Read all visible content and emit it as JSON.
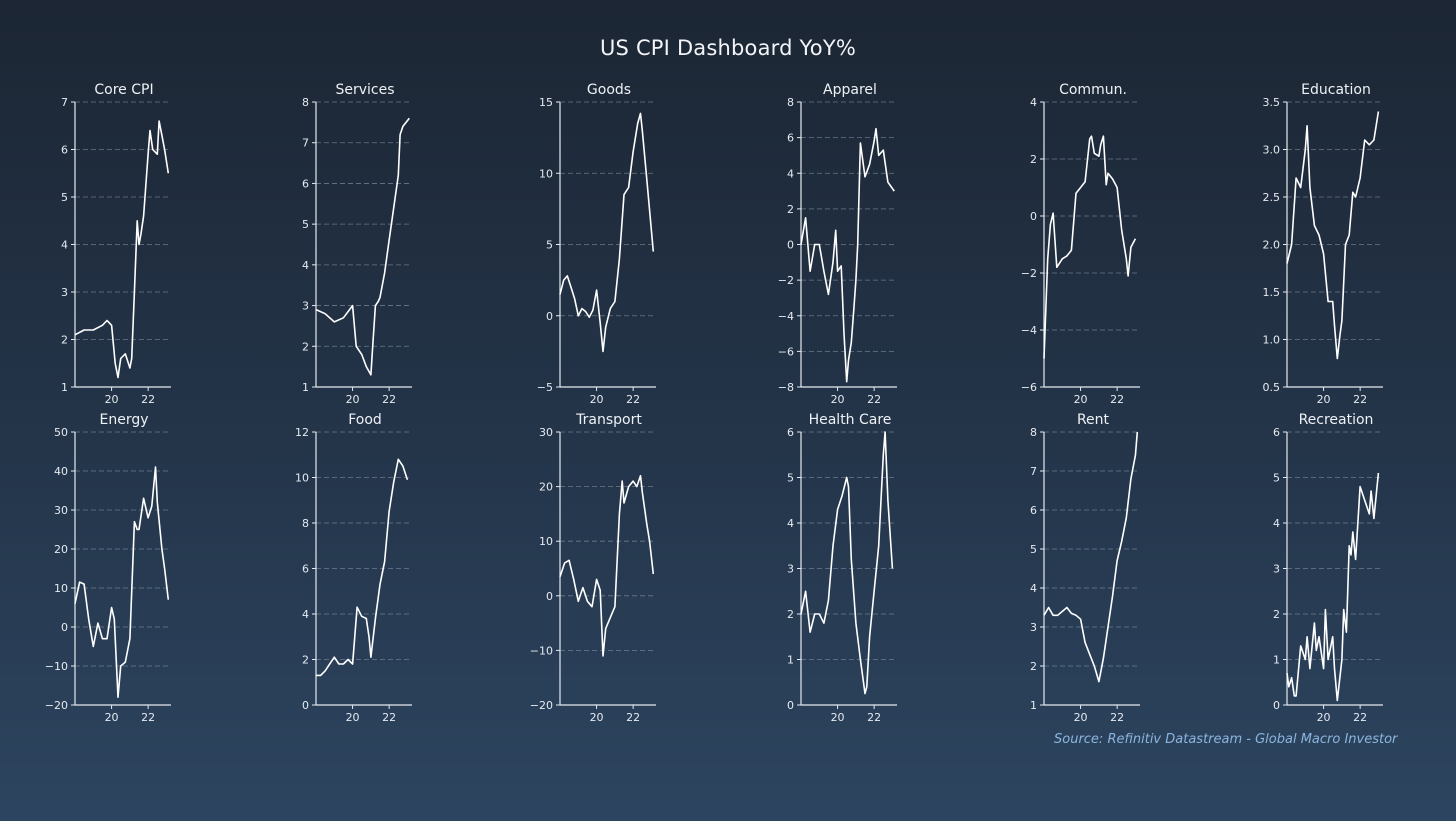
{
  "title": "US CPI Dashboard YoY%",
  "source": "Source: Refinitiv Datastream - Global Macro Investor",
  "colors": {
    "line": "#ffffff",
    "grid": "#8a97a8",
    "axis": "#e6eaf0"
  },
  "chart_data": [
    {
      "type": "line",
      "title": "Core CPI",
      "ylim": [
        1,
        7
      ],
      "yticks": [
        1,
        2,
        3,
        4,
        5,
        6,
        7
      ],
      "xticks": [
        "20",
        "22"
      ],
      "x": [
        2018.0,
        2018.5,
        2019.0,
        2019.5,
        2019.75,
        2020.0,
        2020.2,
        2020.35,
        2020.5,
        2020.75,
        2021.0,
        2021.1,
        2021.25,
        2021.4,
        2021.5,
        2021.6,
        2021.75,
        2022.0,
        2022.1,
        2022.25,
        2022.5,
        2022.6,
        2022.75,
        2022.9,
        2023.1
      ],
      "values": [
        2.1,
        2.2,
        2.2,
        2.3,
        2.4,
        2.3,
        1.5,
        1.2,
        1.6,
        1.7,
        1.4,
        1.6,
        3.0,
        4.5,
        4.0,
        4.2,
        4.6,
        5.9,
        6.4,
        6.0,
        5.9,
        6.6,
        6.3,
        6.0,
        5.5
      ]
    },
    {
      "type": "line",
      "title": "Services",
      "ylim": [
        1,
        8
      ],
      "yticks": [
        1,
        2,
        3,
        4,
        5,
        6,
        7,
        8
      ],
      "xticks": [
        "20",
        "22"
      ],
      "x": [
        2018.0,
        2018.5,
        2019.0,
        2019.5,
        2020.0,
        2020.2,
        2020.5,
        2020.75,
        2021.0,
        2021.1,
        2021.25,
        2021.4,
        2021.5,
        2021.75,
        2022.0,
        2022.25,
        2022.5,
        2022.6,
        2022.75,
        2023.1
      ],
      "values": [
        2.9,
        2.8,
        2.6,
        2.7,
        3.0,
        2.0,
        1.8,
        1.5,
        1.3,
        2.0,
        3.0,
        3.1,
        3.2,
        3.8,
        4.6,
        5.4,
        6.2,
        7.2,
        7.4,
        7.6
      ]
    },
    {
      "type": "line",
      "title": "Goods",
      "ylim": [
        -5,
        15
      ],
      "yticks": [
        -5,
        0,
        5,
        10,
        15
      ],
      "xticks": [
        "20",
        "22"
      ],
      "x": [
        2018.0,
        2018.2,
        2018.4,
        2018.6,
        2018.8,
        2019.0,
        2019.2,
        2019.4,
        2019.6,
        2019.8,
        2020.0,
        2020.2,
        2020.35,
        2020.5,
        2020.75,
        2021.0,
        2021.25,
        2021.5,
        2021.75,
        2022.0,
        2022.25,
        2022.4,
        2022.5,
        2022.75,
        2023.1
      ],
      "values": [
        1.5,
        2.5,
        2.8,
        2.0,
        1.2,
        0.0,
        0.5,
        0.3,
        -0.1,
        0.4,
        1.8,
        -0.5,
        -2.5,
        -0.8,
        0.5,
        1.0,
        4.0,
        8.5,
        9.0,
        11.5,
        13.5,
        14.2,
        13.0,
        9.5,
        4.5
      ]
    },
    {
      "type": "line",
      "title": "Apparel",
      "ylim": [
        -8,
        8
      ],
      "yticks": [
        -8,
        -6,
        -4,
        -2,
        0,
        2,
        4,
        6,
        8
      ],
      "xticks": [
        "20",
        "22"
      ],
      "x": [
        2018.0,
        2018.25,
        2018.5,
        2018.75,
        2019.0,
        2019.25,
        2019.5,
        2019.75,
        2019.9,
        2020.0,
        2020.2,
        2020.35,
        2020.5,
        2020.6,
        2020.75,
        2020.9,
        2021.0,
        2021.1,
        2021.25,
        2021.5,
        2021.75,
        2022.0,
        2022.1,
        2022.25,
        2022.5,
        2022.75,
        2023.1
      ],
      "values": [
        0.0,
        1.5,
        -1.5,
        0.0,
        0.0,
        -1.5,
        -2.8,
        -1.0,
        0.8,
        -1.5,
        -1.2,
        -5.0,
        -7.7,
        -6.5,
        -5.5,
        -3.5,
        -2.0,
        0.0,
        5.7,
        3.8,
        4.5,
        5.8,
        6.5,
        5.0,
        5.3,
        3.5,
        3.0
      ]
    },
    {
      "type": "line",
      "title": "Commun.",
      "ylim": [
        -6,
        4
      ],
      "yticks": [
        -6,
        -4,
        -2,
        0,
        2,
        4
      ],
      "xticks": [
        "20",
        "22"
      ],
      "x": [
        2018.0,
        2018.2,
        2018.35,
        2018.5,
        2018.7,
        2019.0,
        2019.25,
        2019.5,
        2019.75,
        2020.0,
        2020.25,
        2020.5,
        2020.6,
        2020.75,
        2021.0,
        2021.1,
        2021.25,
        2021.4,
        2021.5,
        2021.75,
        2022.0,
        2022.25,
        2022.5,
        2022.6,
        2022.75,
        2023.0
      ],
      "values": [
        -5.0,
        -1.5,
        -0.3,
        0.1,
        -1.8,
        -1.5,
        -1.4,
        -1.2,
        0.8,
        1.0,
        1.2,
        2.7,
        2.8,
        2.2,
        2.1,
        2.5,
        2.8,
        1.1,
        1.5,
        1.3,
        1.0,
        -0.5,
        -1.5,
        -2.1,
        -1.1,
        -0.8
      ]
    },
    {
      "type": "line",
      "title": "Education",
      "ylim": [
        0.5,
        3.5
      ],
      "yticks": [
        0.5,
        1.0,
        1.5,
        2.0,
        2.5,
        3.0,
        3.5
      ],
      "xticks": [
        "20",
        "22"
      ],
      "x": [
        2018.0,
        2018.25,
        2018.5,
        2018.75,
        2019.0,
        2019.1,
        2019.25,
        2019.5,
        2019.75,
        2020.0,
        2020.25,
        2020.5,
        2020.6,
        2020.75,
        2020.9,
        2021.0,
        2021.2,
        2021.4,
        2021.6,
        2021.75,
        2022.0,
        2022.25,
        2022.5,
        2022.75,
        2023.0
      ],
      "values": [
        1.8,
        2.0,
        2.7,
        2.6,
        3.0,
        3.25,
        2.6,
        2.2,
        2.1,
        1.9,
        1.4,
        1.4,
        1.15,
        0.8,
        1.05,
        1.2,
        2.0,
        2.1,
        2.55,
        2.5,
        2.7,
        3.1,
        3.05,
        3.1,
        3.4
      ]
    },
    {
      "type": "line",
      "title": "Energy",
      "ylim": [
        -20,
        50
      ],
      "yticks": [
        -20,
        -10,
        0,
        10,
        20,
        30,
        40,
        50
      ],
      "xticks": [
        "20",
        "22"
      ],
      "x": [
        2018.0,
        2018.25,
        2018.5,
        2018.75,
        2019.0,
        2019.25,
        2019.5,
        2019.75,
        2020.0,
        2020.15,
        2020.35,
        2020.5,
        2020.75,
        2021.0,
        2021.25,
        2021.4,
        2021.5,
        2021.75,
        2022.0,
        2022.2,
        2022.4,
        2022.5,
        2022.75,
        2022.9,
        2023.1
      ],
      "values": [
        6.0,
        11.5,
        11.0,
        2.0,
        -5.0,
        1.0,
        -3.0,
        -3.0,
        5.0,
        2.0,
        -18.0,
        -10.0,
        -9.0,
        -3.0,
        27.0,
        25.0,
        25.0,
        33.0,
        28.0,
        31.0,
        41.0,
        32.0,
        20.0,
        15.0,
        7.0
      ]
    },
    {
      "type": "line",
      "title": "Food",
      "ylim": [
        0,
        12
      ],
      "yticks": [
        0,
        2,
        4,
        6,
        8,
        10,
        12
      ],
      "xticks": [
        "20",
        "22"
      ],
      "x": [
        2018.0,
        2018.25,
        2018.5,
        2018.75,
        2019.0,
        2019.25,
        2019.5,
        2019.75,
        2020.0,
        2020.25,
        2020.5,
        2020.75,
        2020.9,
        2021.0,
        2021.25,
        2021.5,
        2021.75,
        2022.0,
        2022.25,
        2022.5,
        2022.75,
        2023.0
      ],
      "values": [
        1.3,
        1.3,
        1.5,
        1.8,
        2.1,
        1.8,
        1.8,
        2.0,
        1.8,
        4.3,
        3.9,
        3.8,
        3.0,
        2.1,
        3.8,
        5.3,
        6.3,
        8.5,
        9.8,
        10.8,
        10.5,
        9.9
      ]
    },
    {
      "type": "line",
      "title": "Transport",
      "ylim": [
        -20,
        30
      ],
      "yticks": [
        -20,
        -10,
        0,
        10,
        20,
        30
      ],
      "xticks": [
        "20",
        "22"
      ],
      "x": [
        2018.0,
        2018.25,
        2018.5,
        2018.75,
        2019.0,
        2019.25,
        2019.5,
        2019.75,
        2020.0,
        2020.2,
        2020.35,
        2020.5,
        2020.75,
        2021.0,
        2021.25,
        2021.4,
        2021.5,
        2021.75,
        2022.0,
        2022.2,
        2022.4,
        2022.5,
        2022.75,
        2022.9,
        2023.1
      ],
      "values": [
        3.5,
        6.0,
        6.5,
        3.0,
        -1.0,
        1.5,
        -1.0,
        -2.0,
        3.0,
        1.0,
        -11.0,
        -6.0,
        -4.0,
        -2.0,
        15.0,
        21.0,
        17.0,
        20.0,
        21.0,
        20.0,
        22.0,
        19.0,
        13.0,
        10.0,
        4.0
      ]
    },
    {
      "type": "line",
      "title": "Health Care",
      "ylim": [
        0,
        6
      ],
      "yticks": [
        0,
        1,
        2,
        3,
        4,
        5,
        6
      ],
      "xticks": [
        "20",
        "22"
      ],
      "x": [
        2018.0,
        2018.25,
        2018.5,
        2018.75,
        2019.0,
        2019.25,
        2019.5,
        2019.75,
        2020.0,
        2020.25,
        2020.5,
        2020.6,
        2020.75,
        2021.0,
        2021.25,
        2021.5,
        2021.6,
        2021.75,
        2022.0,
        2022.25,
        2022.5,
        2022.6,
        2022.75,
        2023.0
      ],
      "values": [
        2.0,
        2.5,
        1.6,
        2.0,
        2.0,
        1.8,
        2.3,
        3.5,
        4.3,
        4.6,
        5.0,
        4.8,
        3.2,
        1.8,
        1.0,
        0.25,
        0.4,
        1.5,
        2.5,
        3.5,
        5.5,
        6.0,
        4.5,
        3.0
      ]
    },
    {
      "type": "line",
      "title": "Rent",
      "ylim": [
        1,
        8
      ],
      "yticks": [
        1,
        2,
        3,
        4,
        5,
        6,
        7,
        8
      ],
      "xticks": [
        "20",
        "22"
      ],
      "x": [
        2018.0,
        2018.25,
        2018.5,
        2018.75,
        2019.0,
        2019.25,
        2019.5,
        2019.75,
        2020.0,
        2020.25,
        2020.5,
        2020.75,
        2021.0,
        2021.25,
        2021.5,
        2021.75,
        2022.0,
        2022.25,
        2022.5,
        2022.75,
        2023.0,
        2023.1
      ],
      "values": [
        3.3,
        3.5,
        3.3,
        3.3,
        3.4,
        3.5,
        3.35,
        3.3,
        3.2,
        2.6,
        2.3,
        2.0,
        1.6,
        2.2,
        3.0,
        3.8,
        4.7,
        5.2,
        5.8,
        6.8,
        7.4,
        8.0
      ]
    },
    {
      "type": "line",
      "title": "Recreation",
      "ylim": [
        0,
        6
      ],
      "yticks": [
        0,
        1,
        2,
        3,
        4,
        5,
        6
      ],
      "xticks": [
        "20",
        "22"
      ],
      "x": [
        2018.0,
        2018.1,
        2018.25,
        2018.4,
        2018.5,
        2018.75,
        2019.0,
        2019.1,
        2019.25,
        2019.5,
        2019.6,
        2019.75,
        2020.0,
        2020.1,
        2020.25,
        2020.5,
        2020.6,
        2020.75,
        2021.0,
        2021.1,
        2021.25,
        2021.4,
        2021.5,
        2021.6,
        2021.75,
        2022.0,
        2022.25,
        2022.5,
        2022.6,
        2022.75,
        2022.9,
        2023.0
      ],
      "values": [
        0.7,
        0.4,
        0.6,
        0.2,
        0.2,
        1.3,
        1.0,
        1.5,
        0.8,
        1.8,
        1.2,
        1.5,
        0.8,
        2.1,
        1.0,
        1.5,
        0.8,
        0.1,
        1.0,
        2.1,
        1.6,
        3.5,
        3.3,
        3.8,
        3.2,
        4.8,
        4.5,
        4.2,
        4.7,
        4.1,
        4.7,
        5.1
      ]
    }
  ]
}
